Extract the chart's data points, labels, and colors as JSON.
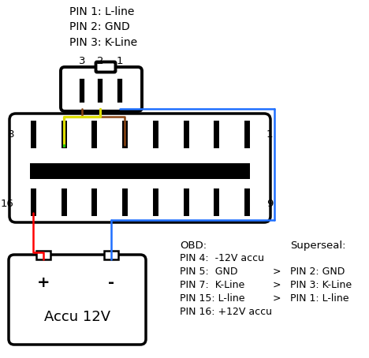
{
  "bg": "#ffffff",
  "fs": 9,
  "fs_bat": 13,
  "wire_brown": "#8B4513",
  "wire_green": "#22cc00",
  "wire_yellow": "#dddd00",
  "wire_blue": "#1e6fff",
  "wire_red": "#ff0000",
  "wire_black": "#222222",
  "lw": 1.8,
  "top_label": "PIN 1: L-line\nPIN 2: GND\nPIN 3: K-Line",
  "pin_nums": [
    "3",
    "2",
    "1"
  ],
  "obd_labels_left": [
    "8",
    "16"
  ],
  "obd_labels_right": [
    "1",
    "9"
  ],
  "bat_text_plus": "+",
  "bat_text_minus": "-",
  "bat_label": "Accu 12V",
  "obd_col1": "OBD:",
  "obd_lines": [
    "PIN 4:  -12V accu",
    "PIN 5:  GND",
    "PIN 7:  K-Line",
    "PIN 15: L-line",
    "PIN 16: +12V accu"
  ],
  "ss_col": "Superseal:",
  "ss_lines": [
    "",
    "PIN 2: GND",
    "PIN 3: K-Line",
    "PIN 1: L-line"
  ],
  "arrow_rows": [
    1,
    2,
    3
  ],
  "arrow_char": ">"
}
